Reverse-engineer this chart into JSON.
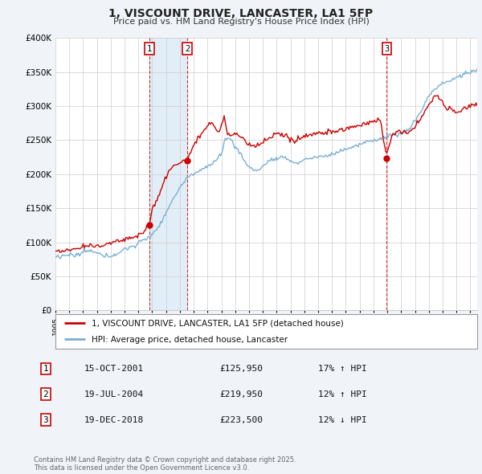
{
  "title": "1, VISCOUNT DRIVE, LANCASTER, LA1 5FP",
  "subtitle": "Price paid vs. HM Land Registry's House Price Index (HPI)",
  "xlim_start": 1995.0,
  "xlim_end": 2025.5,
  "ylim": [
    0,
    400000
  ],
  "yticks": [
    0,
    50000,
    100000,
    150000,
    200000,
    250000,
    300000,
    350000,
    400000
  ],
  "ytick_labels": [
    "£0",
    "£50K",
    "£100K",
    "£150K",
    "£200K",
    "£250K",
    "£300K",
    "£350K",
    "£400K"
  ],
  "sale_dates": [
    2001.79,
    2004.54,
    2018.96
  ],
  "sale_prices": [
    125950,
    219950,
    223500
  ],
  "sale_labels": [
    "1",
    "2",
    "3"
  ],
  "hpi_line_color": "#7bafd4",
  "hpi_fill_color": "#d6e8f5",
  "price_line_color": "#cc0000",
  "sale_marker_color": "#cc0000",
  "vline_color": "#cc0000",
  "legend_label_red": "1, VISCOUNT DRIVE, LANCASTER, LA1 5FP (detached house)",
  "legend_label_blue": "HPI: Average price, detached house, Lancaster",
  "table_rows": [
    [
      "1",
      "15-OCT-2001",
      "£125,950",
      "17% ↑ HPI"
    ],
    [
      "2",
      "19-JUL-2004",
      "£219,950",
      "12% ↑ HPI"
    ],
    [
      "3",
      "19-DEC-2018",
      "£223,500",
      "12% ↓ HPI"
    ]
  ],
  "footnote": "Contains HM Land Registry data © Crown copyright and database right 2025.\nThis data is licensed under the Open Government Licence v3.0.",
  "background_color": "#f0f4f8",
  "plot_bg_color": "#ffffff",
  "grid_color": "#cccccc"
}
